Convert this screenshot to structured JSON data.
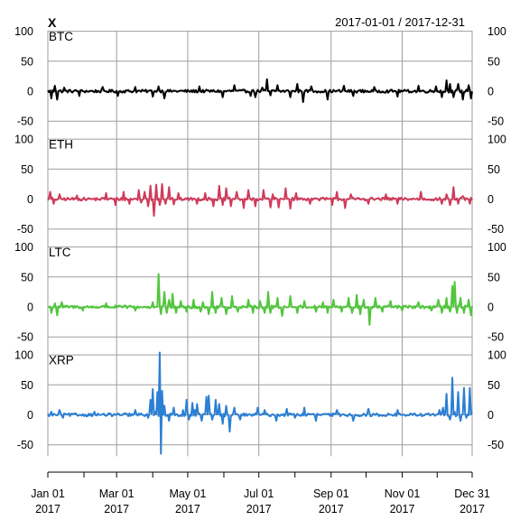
{
  "chart_data": {
    "type": "line",
    "title": "X",
    "date_range": "2017-01-01 / 2017-12-31",
    "x_range": [
      "2017-01-01",
      "2017-12-31"
    ],
    "x_ticks": [
      {
        "date": "2017-01-01",
        "label": "Jan 01",
        "year": "2017"
      },
      {
        "date": "2017-03-01",
        "label": "Mar 01",
        "year": "2017"
      },
      {
        "date": "2017-05-01",
        "label": "May 01",
        "year": "2017"
      },
      {
        "date": "2017-07-01",
        "label": "Jul 01",
        "year": "2017"
      },
      {
        "date": "2017-09-01",
        "label": "Sep 01",
        "year": "2017"
      },
      {
        "date": "2017-11-01",
        "label": "Nov 01",
        "year": "2017"
      },
      {
        "date": "2017-12-31",
        "label": "Dec 31",
        "year": "2017"
      }
    ],
    "y_ticks": [
      100,
      50,
      0,
      -50
    ],
    "ylim": [
      -60,
      105
    ],
    "grid": true,
    "series": [
      {
        "name": "BTC",
        "color": "#000000",
        "spikes": [
          {
            "d": 3,
            "v": -12
          },
          {
            "d": 6,
            "v": 9
          },
          {
            "d": 8,
            "v": -14
          },
          {
            "d": 14,
            "v": 6
          },
          {
            "d": 27,
            "v": -8
          },
          {
            "d": 47,
            "v": 7
          },
          {
            "d": 60,
            "v": -8
          },
          {
            "d": 75,
            "v": 7
          },
          {
            "d": 90,
            "v": -9
          },
          {
            "d": 95,
            "v": 8
          },
          {
            "d": 100,
            "v": -12
          },
          {
            "d": 130,
            "v": 8
          },
          {
            "d": 150,
            "v": -10
          },
          {
            "d": 160,
            "v": 10
          },
          {
            "d": 174,
            "v": -8
          },
          {
            "d": 178,
            "v": -10
          },
          {
            "d": 184,
            "v": 6
          },
          {
            "d": 188,
            "v": 20
          },
          {
            "d": 191,
            "v": -7
          },
          {
            "d": 197,
            "v": 10
          },
          {
            "d": 208,
            "v": -10
          },
          {
            "d": 214,
            "v": 12
          },
          {
            "d": 219,
            "v": -18
          },
          {
            "d": 226,
            "v": 8
          },
          {
            "d": 240,
            "v": -14
          },
          {
            "d": 254,
            "v": 9
          },
          {
            "d": 262,
            "v": -8
          },
          {
            "d": 280,
            "v": 7
          },
          {
            "d": 300,
            "v": -9
          },
          {
            "d": 318,
            "v": 9
          },
          {
            "d": 333,
            "v": 8
          },
          {
            "d": 338,
            "v": -10
          },
          {
            "d": 342,
            "v": 18
          },
          {
            "d": 345,
            "v": 12
          },
          {
            "d": 348,
            "v": -10
          },
          {
            "d": 352,
            "v": 12
          },
          {
            "d": 356,
            "v": -14
          },
          {
            "d": 361,
            "v": 10
          },
          {
            "d": 363,
            "v": -12
          }
        ]
      },
      {
        "name": "ETH",
        "color": "#d03a5a",
        "spikes": [
          {
            "d": 2,
            "v": 12
          },
          {
            "d": 5,
            "v": -8
          },
          {
            "d": 10,
            "v": 8
          },
          {
            "d": 25,
            "v": 6
          },
          {
            "d": 50,
            "v": 10
          },
          {
            "d": 58,
            "v": -10
          },
          {
            "d": 65,
            "v": 12
          },
          {
            "d": 70,
            "v": -8
          },
          {
            "d": 78,
            "v": 15
          },
          {
            "d": 80,
            "v": -6
          },
          {
            "d": 83,
            "v": 12
          },
          {
            "d": 86,
            "v": -12
          },
          {
            "d": 88,
            "v": 22
          },
          {
            "d": 91,
            "v": -28
          },
          {
            "d": 93,
            "v": 24
          },
          {
            "d": 96,
            "v": -10
          },
          {
            "d": 98,
            "v": 25
          },
          {
            "d": 101,
            "v": -8
          },
          {
            "d": 104,
            "v": 20
          },
          {
            "d": 108,
            "v": -9
          },
          {
            "d": 112,
            "v": 10
          },
          {
            "d": 128,
            "v": -8
          },
          {
            "d": 135,
            "v": 10
          },
          {
            "d": 142,
            "v": -12
          },
          {
            "d": 147,
            "v": 22
          },
          {
            "d": 150,
            "v": -10
          },
          {
            "d": 153,
            "v": 18
          },
          {
            "d": 157,
            "v": -12
          },
          {
            "d": 162,
            "v": 12
          },
          {
            "d": 168,
            "v": -15
          },
          {
            "d": 172,
            "v": 15
          },
          {
            "d": 178,
            "v": -12
          },
          {
            "d": 185,
            "v": 15
          },
          {
            "d": 191,
            "v": -14
          },
          {
            "d": 193,
            "v": 8
          },
          {
            "d": 198,
            "v": -14
          },
          {
            "d": 204,
            "v": 18
          },
          {
            "d": 208,
            "v": -16
          },
          {
            "d": 213,
            "v": 10
          },
          {
            "d": 225,
            "v": -8
          },
          {
            "d": 244,
            "v": -10
          },
          {
            "d": 248,
            "v": 12
          },
          {
            "d": 255,
            "v": -15
          },
          {
            "d": 260,
            "v": 8
          },
          {
            "d": 275,
            "v": -8
          },
          {
            "d": 290,
            "v": 8
          },
          {
            "d": 300,
            "v": -8
          },
          {
            "d": 320,
            "v": 12
          },
          {
            "d": 338,
            "v": -8
          },
          {
            "d": 342,
            "v": 8
          },
          {
            "d": 345,
            "v": -10
          },
          {
            "d": 348,
            "v": 20
          },
          {
            "d": 352,
            "v": -8
          },
          {
            "d": 356,
            "v": 5
          },
          {
            "d": 362,
            "v": -8
          }
        ]
      },
      {
        "name": "LTC",
        "color": "#4fc63a",
        "spikes": [
          {
            "d": 3,
            "v": -10
          },
          {
            "d": 6,
            "v": 6
          },
          {
            "d": 8,
            "v": -14
          },
          {
            "d": 12,
            "v": 8
          },
          {
            "d": 30,
            "v": -6
          },
          {
            "d": 50,
            "v": 6
          },
          {
            "d": 75,
            "v": -6
          },
          {
            "d": 90,
            "v": 8
          },
          {
            "d": 95,
            "v": 55
          },
          {
            "d": 97,
            "v": -12
          },
          {
            "d": 100,
            "v": 25
          },
          {
            "d": 102,
            "v": -10
          },
          {
            "d": 104,
            "v": 12
          },
          {
            "d": 107,
            "v": 22
          },
          {
            "d": 110,
            "v": -10
          },
          {
            "d": 114,
            "v": 10
          },
          {
            "d": 119,
            "v": -8
          },
          {
            "d": 125,
            "v": 12
          },
          {
            "d": 131,
            "v": -8
          },
          {
            "d": 133,
            "v": 8
          },
          {
            "d": 138,
            "v": -12
          },
          {
            "d": 141,
            "v": 25
          },
          {
            "d": 144,
            "v": -10
          },
          {
            "d": 149,
            "v": 15
          },
          {
            "d": 153,
            "v": -12
          },
          {
            "d": 158,
            "v": 18
          },
          {
            "d": 163,
            "v": -8
          },
          {
            "d": 172,
            "v": 12
          },
          {
            "d": 176,
            "v": -10
          },
          {
            "d": 182,
            "v": 10
          },
          {
            "d": 186,
            "v": -10
          },
          {
            "d": 189,
            "v": 25
          },
          {
            "d": 191,
            "v": -10
          },
          {
            "d": 197,
            "v": 15
          },
          {
            "d": 201,
            "v": -15
          },
          {
            "d": 208,
            "v": 18
          },
          {
            "d": 214,
            "v": -10
          },
          {
            "d": 220,
            "v": 10
          },
          {
            "d": 230,
            "v": -8
          },
          {
            "d": 236,
            "v": 8
          },
          {
            "d": 240,
            "v": -10
          },
          {
            "d": 245,
            "v": 12
          },
          {
            "d": 252,
            "v": -8
          },
          {
            "d": 258,
            "v": 15
          },
          {
            "d": 261,
            "v": -10
          },
          {
            "d": 265,
            "v": 20
          },
          {
            "d": 268,
            "v": -12
          },
          {
            "d": 271,
            "v": 12
          },
          {
            "d": 276,
            "v": -30
          },
          {
            "d": 281,
            "v": 15
          },
          {
            "d": 287,
            "v": -8
          },
          {
            "d": 294,
            "v": 10
          },
          {
            "d": 304,
            "v": -6
          },
          {
            "d": 318,
            "v": 8
          },
          {
            "d": 329,
            "v": -6
          },
          {
            "d": 335,
            "v": 12
          },
          {
            "d": 338,
            "v": -10
          },
          {
            "d": 342,
            "v": 15
          },
          {
            "d": 345,
            "v": -8
          },
          {
            "d": 347,
            "v": 35
          },
          {
            "d": 349,
            "v": 42
          },
          {
            "d": 351,
            "v": -10
          },
          {
            "d": 354,
            "v": 15
          },
          {
            "d": 357,
            "v": -10
          },
          {
            "d": 361,
            "v": 12
          },
          {
            "d": 363,
            "v": -14
          }
        ]
      },
      {
        "name": "XRP",
        "color": "#2b7fd4",
        "spikes": [
          {
            "d": 3,
            "v": 5
          },
          {
            "d": 10,
            "v": 8
          },
          {
            "d": 13,
            "v": -5
          },
          {
            "d": 40,
            "v": 5
          },
          {
            "d": 75,
            "v": 8
          },
          {
            "d": 86,
            "v": -5
          },
          {
            "d": 88,
            "v": 25
          },
          {
            "d": 90,
            "v": 43
          },
          {
            "d": 92,
            "v": 5
          },
          {
            "d": 94,
            "v": 38
          },
          {
            "d": 96,
            "v": 104
          },
          {
            "d": 97,
            "v": -65
          },
          {
            "d": 98,
            "v": 40
          },
          {
            "d": 100,
            "v": 15
          },
          {
            "d": 104,
            "v": -10
          },
          {
            "d": 108,
            "v": 12
          },
          {
            "d": 116,
            "v": 8
          },
          {
            "d": 119,
            "v": 25
          },
          {
            "d": 121,
            "v": -8
          },
          {
            "d": 124,
            "v": 20
          },
          {
            "d": 126,
            "v": 8
          },
          {
            "d": 128,
            "v": 18
          },
          {
            "d": 132,
            "v": -10
          },
          {
            "d": 136,
            "v": 30
          },
          {
            "d": 138,
            "v": 32
          },
          {
            "d": 141,
            "v": -8
          },
          {
            "d": 144,
            "v": 25
          },
          {
            "d": 147,
            "v": 18
          },
          {
            "d": 150,
            "v": -15
          },
          {
            "d": 153,
            "v": 15
          },
          {
            "d": 156,
            "v": -28
          },
          {
            "d": 160,
            "v": 12
          },
          {
            "d": 165,
            "v": -8
          },
          {
            "d": 180,
            "v": 12
          },
          {
            "d": 186,
            "v": 8
          },
          {
            "d": 196,
            "v": -10
          },
          {
            "d": 205,
            "v": 10
          },
          {
            "d": 212,
            "v": -5
          },
          {
            "d": 220,
            "v": 12
          },
          {
            "d": 230,
            "v": -10
          },
          {
            "d": 248,
            "v": 8
          },
          {
            "d": 262,
            "v": -10
          },
          {
            "d": 275,
            "v": 10
          },
          {
            "d": 300,
            "v": 8
          },
          {
            "d": 336,
            "v": 8
          },
          {
            "d": 339,
            "v": 12
          },
          {
            "d": 342,
            "v": 35
          },
          {
            "d": 345,
            "v": -8
          },
          {
            "d": 347,
            "v": 62
          },
          {
            "d": 349,
            "v": 5
          },
          {
            "d": 352,
            "v": 38
          },
          {
            "d": 354,
            "v": -10
          },
          {
            "d": 357,
            "v": 45
          },
          {
            "d": 359,
            "v": -5
          },
          {
            "d": 362,
            "v": 45
          },
          {
            "d": 364,
            "v": 5
          }
        ]
      }
    ]
  }
}
